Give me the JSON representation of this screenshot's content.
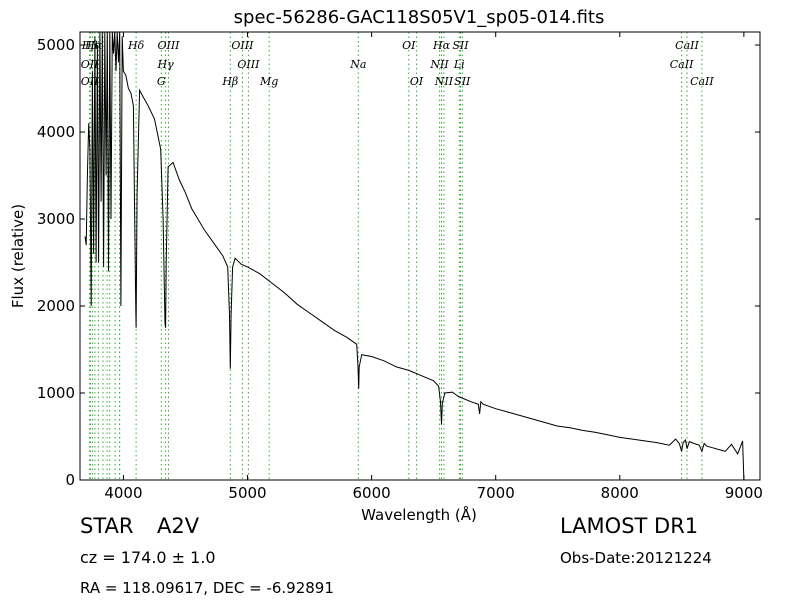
{
  "chart_data": {
    "type": "line",
    "title": "spec-56286-GAC118S05V1_sp05-014.fits",
    "xlabel": "Wavelength (Å)",
    "ylabel": "Flux (relative)",
    "xlim": [
      3650,
      9130
    ],
    "ylim": [
      0,
      5150
    ],
    "xticks": [
      4000,
      5000,
      6000,
      7000,
      8000,
      9000
    ],
    "yticks": [
      0,
      1000,
      2000,
      3000,
      4000,
      5000
    ],
    "grid": false,
    "series": [
      {
        "color": "#000000",
        "x": [
          3690,
          3700,
          3710,
          3720,
          3730,
          3740,
          3750,
          3760,
          3770,
          3780,
          3790,
          3800,
          3810,
          3820,
          3830,
          3840,
          3850,
          3860,
          3870,
          3880,
          3890,
          3900,
          3910,
          3920,
          3930,
          3940,
          3950,
          3960,
          3970,
          3980,
          3990,
          4000,
          4020,
          4040,
          4060,
          4080,
          4090,
          4100,
          4102,
          4110,
          4130,
          4160,
          4200,
          4250,
          4300,
          4320,
          4335,
          4340,
          4345,
          4360,
          4400,
          4450,
          4500,
          4550,
          4600,
          4650,
          4700,
          4750,
          4800,
          4840,
          4855,
          4861,
          4868,
          4880,
          4900,
          4950,
          5000,
          5100,
          5200,
          5300,
          5400,
          5500,
          5600,
          5700,
          5800,
          5880,
          5890,
          5896,
          5900,
          5920,
          6000,
          6100,
          6200,
          6300,
          6400,
          6500,
          6540,
          6555,
          6563,
          6570,
          6590,
          6650,
          6700,
          6800,
          6860,
          6870,
          6880,
          6900,
          7000,
          7100,
          7200,
          7300,
          7400,
          7500,
          7600,
          7700,
          7800,
          7900,
          8000,
          8100,
          8200,
          8300,
          8400,
          8450,
          8480,
          8498,
          8510,
          8530,
          8542,
          8560,
          8600,
          8640,
          8662,
          8680,
          8700,
          8750,
          8800,
          8850,
          8900,
          8950,
          8990,
          9000
        ],
        "y": [
          2800,
          2700,
          3500,
          4100,
          3800,
          2000,
          4700,
          2600,
          5100,
          2500,
          5000,
          2500,
          5150,
          3200,
          5150,
          2450,
          5150,
          3500,
          5150,
          2400,
          5150,
          3000,
          5150,
          4900,
          5150,
          4700,
          5150,
          4800,
          5150,
          2000,
          5100,
          4700,
          4650,
          4500,
          4450,
          4300,
          3100,
          1950,
          1750,
          3300,
          4480,
          4400,
          4300,
          4150,
          3800,
          3000,
          1800,
          1750,
          2500,
          3600,
          3650,
          3450,
          3300,
          3120,
          3000,
          2880,
          2780,
          2680,
          2580,
          2450,
          1900,
          1280,
          1900,
          2450,
          2550,
          2480,
          2450,
          2370,
          2260,
          2150,
          2020,
          1920,
          1820,
          1720,
          1640,
          1560,
          1300,
          1050,
          1300,
          1440,
          1420,
          1370,
          1300,
          1260,
          1200,
          1140,
          1080,
          900,
          640,
          880,
          1000,
          1010,
          960,
          900,
          870,
          760,
          900,
          870,
          820,
          780,
          740,
          700,
          660,
          620,
          600,
          570,
          550,
          520,
          490,
          470,
          450,
          430,
          400,
          470,
          420,
          330,
          430,
          460,
          360,
          440,
          420,
          400,
          330,
          420,
          390,
          370,
          350,
          330,
          410,
          300,
          450,
          0
        ]
      }
    ],
    "line_annotations": [
      {
        "label": "Hβ",
        "x": 3730,
        "row": 0
      },
      {
        "label": "Hα",
        "x": 3760,
        "row": 0
      },
      {
        "label": "Hδ",
        "x": 4102,
        "row": 0
      },
      {
        "label": "OIII",
        "x": 4363,
        "row": 0
      },
      {
        "label": "OIII",
        "x": 4959,
        "row": 0
      },
      {
        "label": "OI",
        "x": 6300,
        "row": 0
      },
      {
        "label": "Hα",
        "x": 6563,
        "row": 0
      },
      {
        "label": "SII",
        "x": 6716,
        "row": 0
      },
      {
        "label": "CaII",
        "x": 8542,
        "row": 0
      },
      {
        "label": "OII",
        "x": 3727,
        "row": 1
      },
      {
        "label": "Hγ",
        "x": 4340,
        "row": 1
      },
      {
        "label": "OIII",
        "x": 5007,
        "row": 1
      },
      {
        "label": "Na",
        "x": 5893,
        "row": 1
      },
      {
        "label": "NII",
        "x": 6548,
        "row": 1
      },
      {
        "label": "Li",
        "x": 6707,
        "row": 1
      },
      {
        "label": "CaII",
        "x": 8498,
        "row": 1
      },
      {
        "label": "OII",
        "x": 3727,
        "row": 2
      },
      {
        "label": "G",
        "x": 4305,
        "row": 2
      },
      {
        "label": "Hβ",
        "x": 4861,
        "row": 2
      },
      {
        "label": "Mg",
        "x": 5175,
        "row": 2
      },
      {
        "label": "OI",
        "x": 6363,
        "row": 2
      },
      {
        "label": "NII",
        "x": 6583,
        "row": 2
      },
      {
        "label": "SII",
        "x": 6731,
        "row": 2
      },
      {
        "label": "CaII",
        "x": 8662,
        "row": 2
      }
    ],
    "line_markers": [
      3727,
      3734,
      3750,
      3770,
      3798,
      3835,
      3868,
      3889,
      3933,
      3968,
      3970,
      4102,
      4305,
      4340,
      4363,
      4861,
      4959,
      5007,
      5175,
      5893,
      6300,
      6363,
      6548,
      6563,
      6583,
      6707,
      6716,
      6731,
      8498,
      8542,
      8662
    ]
  },
  "info": {
    "object_class": "STAR",
    "subclass": "A2V",
    "survey": "LAMOST DR1",
    "redshift": "cz = 174.0 ± 1.0",
    "obs_date": "Obs-Date:20121224",
    "coords": "RA = 118.09617, DEC = -6.92891"
  },
  "colors": {
    "spectrum": "#000000",
    "marker": "#33aa33",
    "axes": "#000000"
  }
}
